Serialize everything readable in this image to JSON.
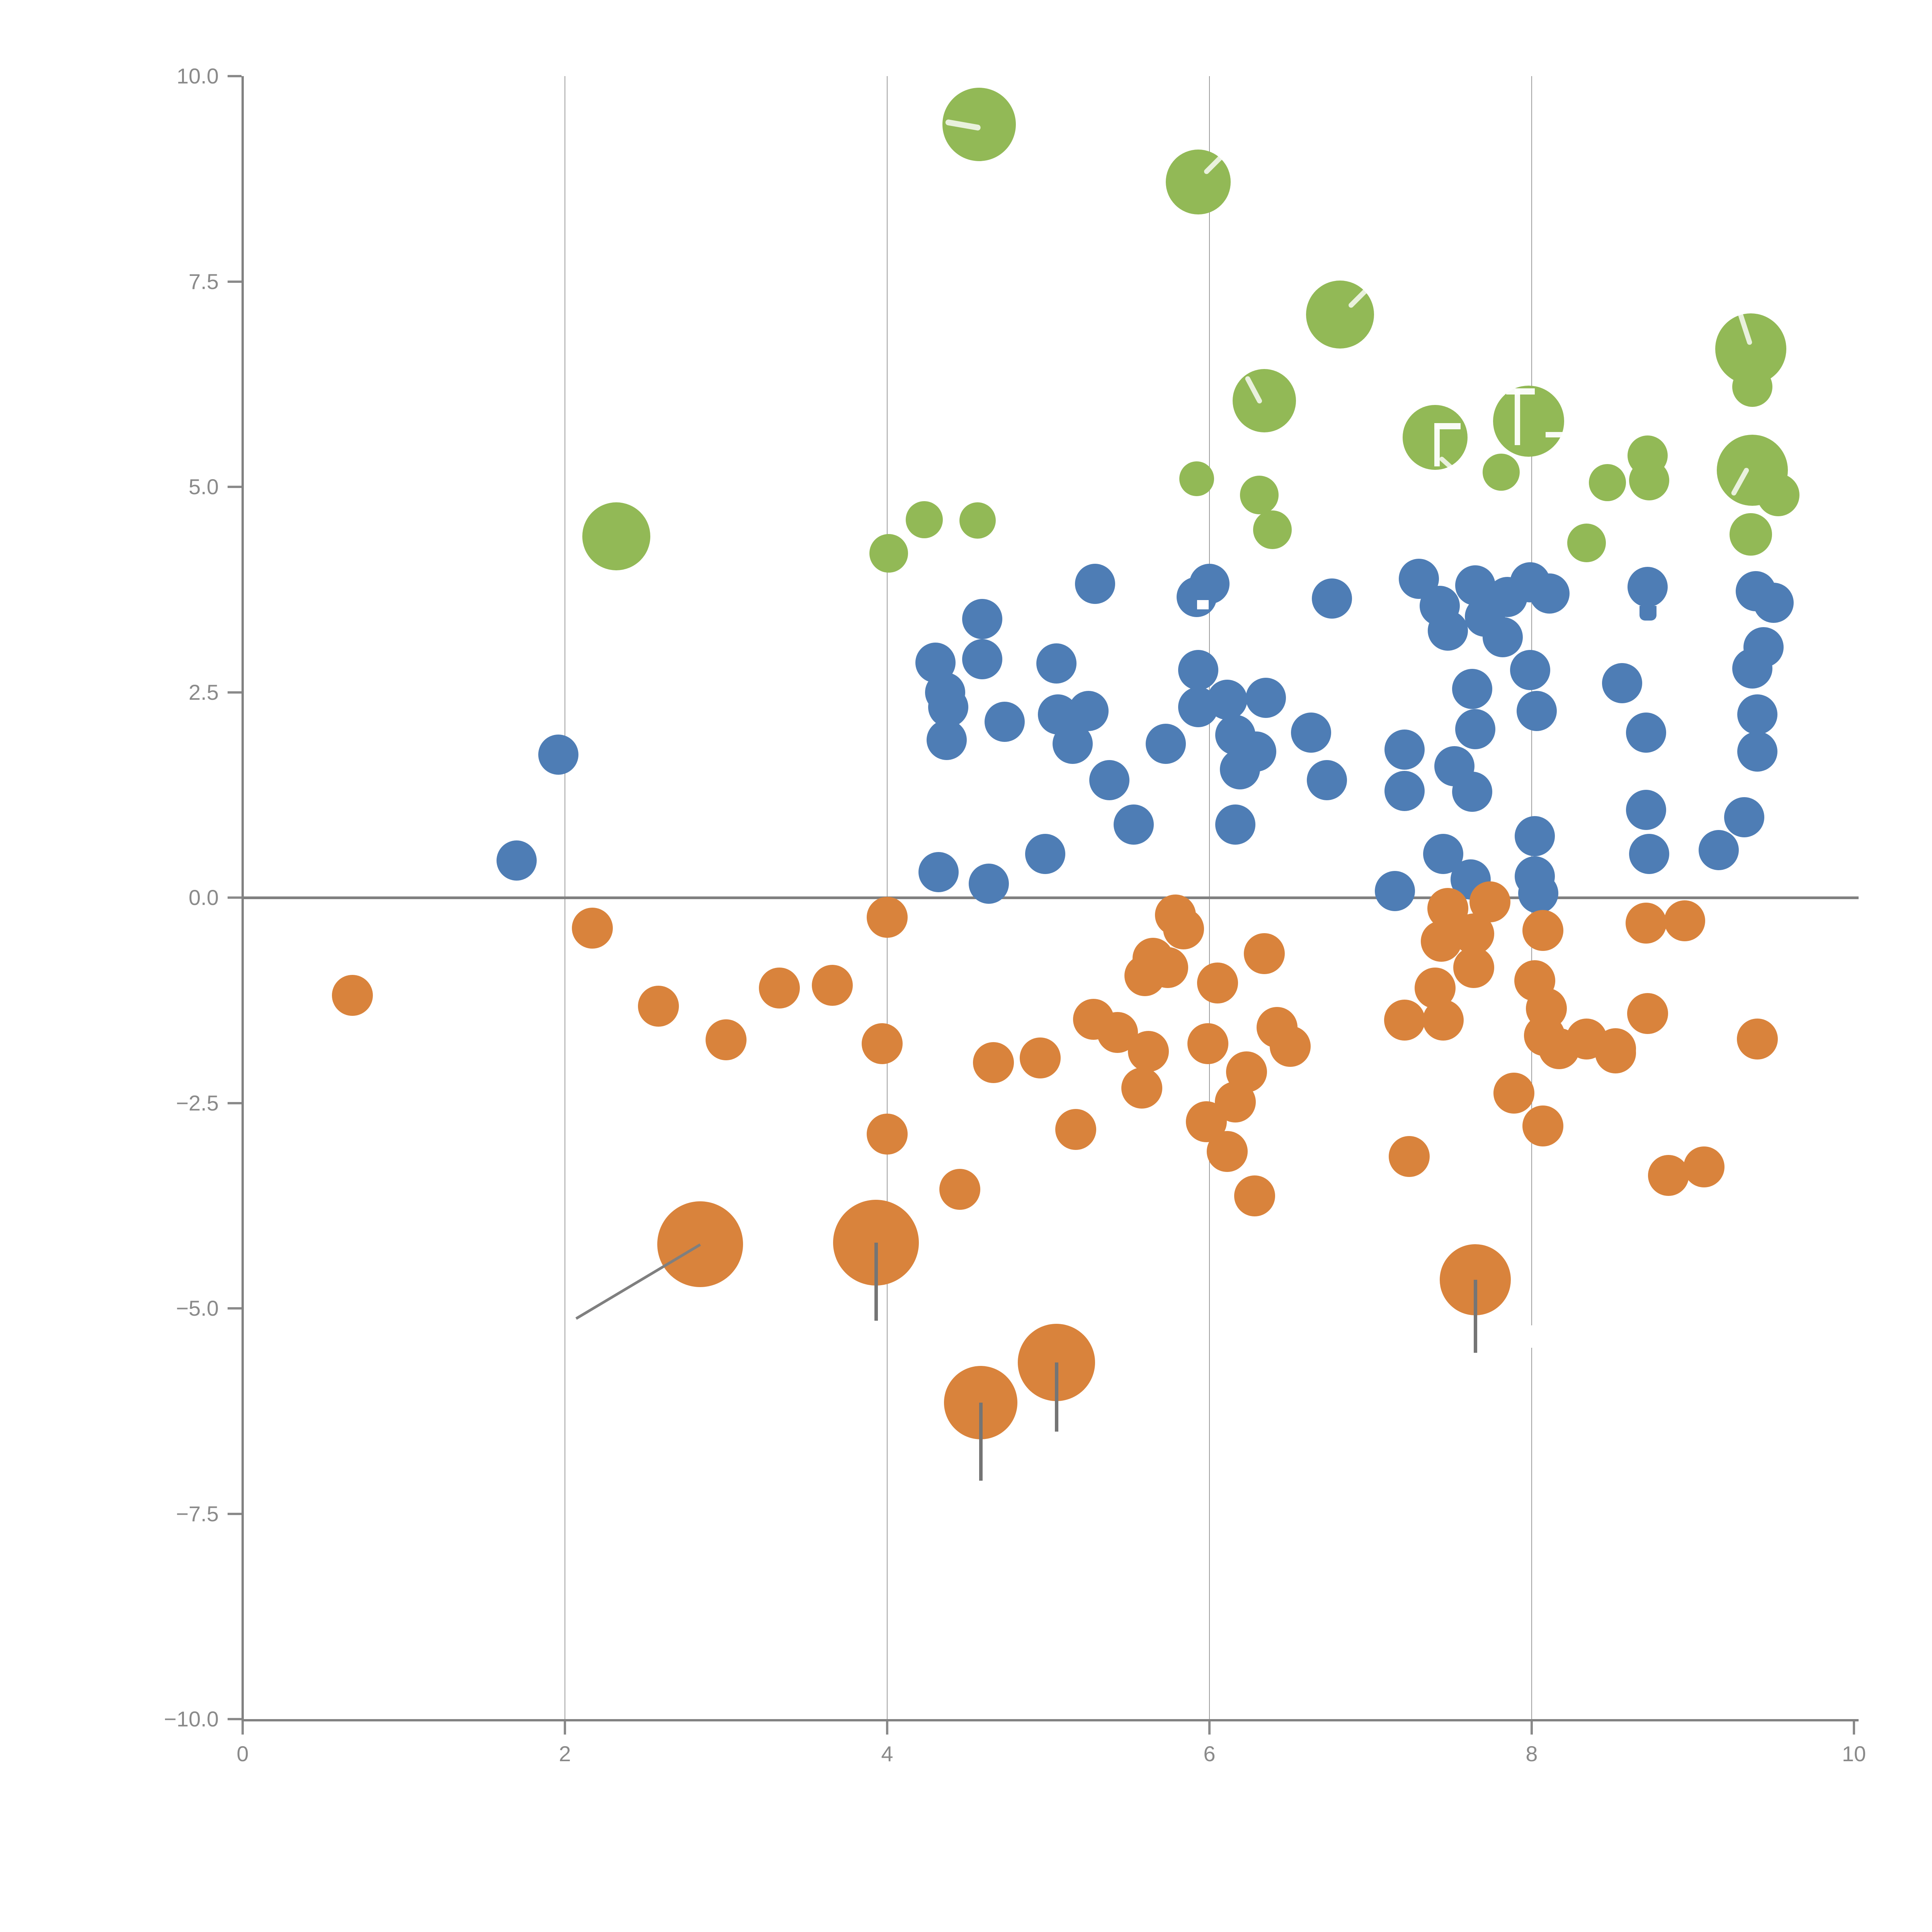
{
  "chart_data": {
    "type": "scatter",
    "title": "",
    "xlabel": "",
    "ylabel": "",
    "xlim": [
      0,
      10
    ],
    "ylim": [
      -10,
      10
    ],
    "grid": "vertical-only",
    "legend_position": "none",
    "xticks": [
      {
        "value": 0,
        "label": "0"
      },
      {
        "value": 2,
        "label": "2"
      },
      {
        "value": 4,
        "label": "4"
      },
      {
        "value": 6,
        "label": "6"
      },
      {
        "value": 8,
        "label": "8"
      },
      {
        "value": 10,
        "label": "10"
      }
    ],
    "yticks": [
      {
        "value": 10.0,
        "label": "10.0"
      },
      {
        "value": 7.5,
        "label": "7.5"
      },
      {
        "value": 5.0,
        "label": "5.0"
      },
      {
        "value": 2.5,
        "label": "2.5"
      },
      {
        "value": 0.0,
        "label": "0.0"
      },
      {
        "value": -2.5,
        "label": "−2.5"
      },
      {
        "value": -5.0,
        "label": "−5.0"
      },
      {
        "value": -7.5,
        "label": "−7.5"
      },
      {
        "value": -10.0,
        "label": "−10.0"
      }
    ],
    "gridlines_x": [
      2,
      4,
      6,
      8
    ],
    "zero_line_y": 0.0,
    "colors": {
      "green": "#92b956",
      "blue": "#4e7db5",
      "orange": "#d9833c",
      "axis": "#828282",
      "gridline": "#9b9b9b",
      "tick_label": "#8a8a8a",
      "error_bar": "#757575"
    },
    "series": [
      {
        "name": "green-bubbles",
        "color": "#92b956",
        "default_r": 50,
        "points": [
          [
            2.32,
            4.4,
            88
          ],
          [
            4.57,
            9.41,
            95
          ],
          [
            5.93,
            8.71,
            84
          ],
          [
            6.81,
            7.1,
            88
          ],
          [
            6.34,
            6.05,
            82
          ],
          [
            7.4,
            5.6,
            84
          ],
          [
            7.98,
            5.8,
            92
          ],
          [
            9.36,
            6.68,
            92
          ],
          [
            9.37,
            5.2,
            92
          ],
          [
            4.23,
            4.6,
            48
          ],
          [
            4.56,
            4.59,
            47
          ],
          [
            4.01,
            4.19,
            50
          ],
          [
            5.92,
            5.1,
            45
          ],
          [
            6.31,
            4.9,
            50
          ],
          [
            6.39,
            4.48,
            50
          ],
          [
            7.81,
            5.18,
            48
          ],
          [
            8.47,
            5.05,
            48
          ],
          [
            8.34,
            4.32,
            50
          ],
          [
            8.72,
            5.38,
            52
          ],
          [
            8.73,
            5.08,
            52
          ],
          [
            9.37,
            6.22,
            52
          ],
          [
            9.53,
            4.9,
            55
          ],
          [
            9.36,
            4.42,
            55
          ]
        ]
      },
      {
        "name": "blue-dots",
        "color": "#4e7db5",
        "default_r": 52,
        "points": [
          [
            1.96,
            1.74
          ],
          [
            1.7,
            0.45
          ],
          [
            4.3,
            2.86
          ],
          [
            4.36,
            2.5
          ],
          [
            4.38,
            2.32
          ],
          [
            4.37,
            1.92
          ],
          [
            4.32,
            0.31
          ],
          [
            4.59,
            3.39
          ],
          [
            4.59,
            2.9
          ],
          [
            5.05,
            2.85
          ],
          [
            5.29,
            3.82
          ],
          [
            5.92,
            3.66
          ],
          [
            6.0,
            3.82
          ],
          [
            6.76,
            3.64
          ],
          [
            5.93,
            2.77
          ],
          [
            5.93,
            2.32
          ],
          [
            6.11,
            2.41
          ],
          [
            6.35,
            2.43
          ],
          [
            4.73,
            2.14
          ],
          [
            5.06,
            2.23
          ],
          [
            5.25,
            2.27
          ],
          [
            5.15,
            1.87
          ],
          [
            5.38,
            1.43
          ],
          [
            5.73,
            1.87
          ],
          [
            6.16,
            1.98
          ],
          [
            6.29,
            1.78
          ],
          [
            6.19,
            1.56
          ],
          [
            6.63,
            2.01
          ],
          [
            6.73,
            1.43
          ],
          [
            5.53,
            0.89
          ],
          [
            6.16,
            0.89
          ],
          [
            4.98,
            0.53
          ],
          [
            4.63,
            0.17
          ],
          [
            7.15,
            0.08
          ],
          [
            7.21,
            1.8
          ],
          [
            7.21,
            1.3
          ],
          [
            7.3,
            3.88
          ],
          [
            7.43,
            3.55
          ],
          [
            7.48,
            3.25
          ],
          [
            7.65,
            3.8
          ],
          [
            7.71,
            3.42
          ],
          [
            7.85,
            3.66
          ],
          [
            7.99,
            3.84
          ],
          [
            8.11,
            3.7
          ],
          [
            7.82,
            3.17
          ],
          [
            8.72,
            3.78
          ],
          [
            9.39,
            3.73
          ],
          [
            9.5,
            3.59
          ],
          [
            9.44,
            3.05
          ],
          [
            9.37,
            2.79
          ],
          [
            9.4,
            2.23
          ],
          [
            9.4,
            1.78
          ],
          [
            8.56,
            2.61
          ],
          [
            8.71,
            2.01
          ],
          [
            8.71,
            1.07
          ],
          [
            8.73,
            0.53
          ],
          [
            9.32,
            0.98
          ],
          [
            9.16,
            0.58
          ],
          [
            7.63,
            2.54
          ],
          [
            7.65,
            2.05
          ],
          [
            7.52,
            1.6
          ],
          [
            7.63,
            1.29
          ],
          [
            7.45,
            0.53
          ],
          [
            7.62,
            0.22
          ],
          [
            8.02,
            0.75
          ],
          [
            8.02,
            0.26
          ],
          [
            8.04,
            0.05
          ],
          [
            7.99,
            2.77
          ],
          [
            8.03,
            2.27
          ]
        ]
      },
      {
        "name": "orange-dots",
        "color": "#d9833c",
        "default_r": 53,
        "points": [
          [
            0.68,
            -1.19
          ],
          [
            2.17,
            -0.37
          ],
          [
            2.58,
            -1.32
          ],
          [
            3.0,
            -1.73
          ],
          [
            3.33,
            -1.1
          ],
          [
            3.66,
            -1.07
          ],
          [
            4.0,
            -0.24
          ],
          [
            3.97,
            -1.78
          ],
          [
            4.0,
            -2.88
          ],
          [
            4.66,
            -2.01
          ],
          [
            4.95,
            -1.95
          ],
          [
            5.28,
            -1.48
          ],
          [
            5.43,
            -1.64
          ],
          [
            5.65,
            -0.74
          ],
          [
            5.6,
            -0.95
          ],
          [
            5.62,
            -1.87
          ],
          [
            5.58,
            -2.32
          ],
          [
            5.17,
            -2.82
          ],
          [
            4.45,
            -3.55
          ],
          [
            5.79,
            -0.21
          ],
          [
            5.84,
            -0.38
          ],
          [
            5.74,
            -0.85
          ],
          [
            6.05,
            -1.04
          ],
          [
            6.34,
            -0.68
          ],
          [
            5.99,
            -1.78
          ],
          [
            6.42,
            -1.58
          ],
          [
            6.5,
            -1.81
          ],
          [
            6.23,
            -2.12
          ],
          [
            6.16,
            -2.49
          ],
          [
            5.98,
            -2.73
          ],
          [
            6.11,
            -3.09
          ],
          [
            6.28,
            -3.63
          ],
          [
            7.21,
            -1.49
          ],
          [
            7.45,
            -1.49
          ],
          [
            7.4,
            -1.1
          ],
          [
            7.44,
            -0.53
          ],
          [
            7.64,
            -0.44
          ],
          [
            7.64,
            -0.85
          ],
          [
            7.48,
            -0.13
          ],
          [
            7.74,
            -0.05
          ],
          [
            7.24,
            -3.15
          ],
          [
            8.07,
            -0.4
          ],
          [
            8.02,
            -1.01
          ],
          [
            8.09,
            -1.35
          ],
          [
            8.08,
            -1.68
          ],
          [
            8.17,
            -1.84
          ],
          [
            8.34,
            -1.72
          ],
          [
            8.52,
            -1.84
          ],
          [
            7.89,
            -2.38
          ],
          [
            8.07,
            -2.78
          ],
          [
            8.71,
            -0.31
          ],
          [
            8.95,
            -0.28
          ],
          [
            8.72,
            -1.41
          ],
          [
            8.52,
            -1.89
          ],
          [
            9.4,
            -1.72
          ],
          [
            8.85,
            -3.38
          ],
          [
            9.07,
            -3.28
          ]
        ]
      }
    ],
    "large_bubbles": [
      {
        "x": 2.84,
        "y": -4.22,
        "r": 111,
        "error_bar_to": null
      },
      {
        "x": 3.93,
        "y": -4.2,
        "r": 111,
        "error_bar_to": -5.15
      },
      {
        "x": 4.58,
        "y": -6.15,
        "r": 95,
        "error_bar_to": -7.1
      },
      {
        "x": 5.05,
        "y": -5.66,
        "r": 100,
        "error_bar_to": -6.5
      },
      {
        "x": 7.65,
        "y": -4.65,
        "r": 92,
        "error_bar_to": -5.54
      }
    ],
    "annotation_line": {
      "from": [
        2.07,
        -5.12
      ],
      "to": [
        2.84,
        -4.22
      ]
    },
    "watermark_fragments": {
      "letters": [
        {
          "glyph": "F-stem",
          "x": 3712,
          "y": 1095,
          "w": 14,
          "h": 112
        },
        {
          "glyph": "F-topbar",
          "x": 3712,
          "y": 1095,
          "w": 68,
          "h": 16
        },
        {
          "glyph": "T-topbar",
          "x": 3898,
          "y": 1005,
          "w": 74,
          "h": 16
        },
        {
          "glyph": "T-stem",
          "x": 3920,
          "y": 1005,
          "w": 14,
          "h": 147
        },
        {
          "glyph": "dash",
          "x": 4000,
          "y": 1118,
          "w": 90,
          "h": 14
        }
      ],
      "slashes": [
        {
          "x": 2447,
          "y": 308,
          "len": 92,
          "angle": 10,
          "w": 15
        },
        {
          "x": 3118,
          "y": 442,
          "len": 80,
          "angle": -45,
          "w": 13
        },
        {
          "x": 3492,
          "y": 788,
          "len": 95,
          "angle": -45,
          "w": 13
        },
        {
          "x": 3226,
          "y": 968,
          "len": 78,
          "angle": 62,
          "w": 13
        },
        {
          "x": 4502,
          "y": 800,
          "len": 90,
          "angle": 72,
          "w": 13
        },
        {
          "x": 4484,
          "y": 1275,
          "len": 80,
          "angle": -61,
          "w": 13
        },
        {
          "x": 3727,
          "y": 1178,
          "len": 93,
          "angle": 42,
          "w": 12
        },
        {
          "x": 3648,
          "y": 1288,
          "len": 109,
          "angle": -35,
          "w": 12
        }
      ],
      "white_rects": [
        {
          "x": 3946,
          "y": 3430,
          "w": 36,
          "h": 58
        },
        {
          "x": 3098,
          "y": 1553,
          "w": 30,
          "h": 24
        }
      ],
      "blue_nub": {
        "x": 4243,
        "y": 1568,
        "w": 44,
        "h": 38
      }
    }
  }
}
